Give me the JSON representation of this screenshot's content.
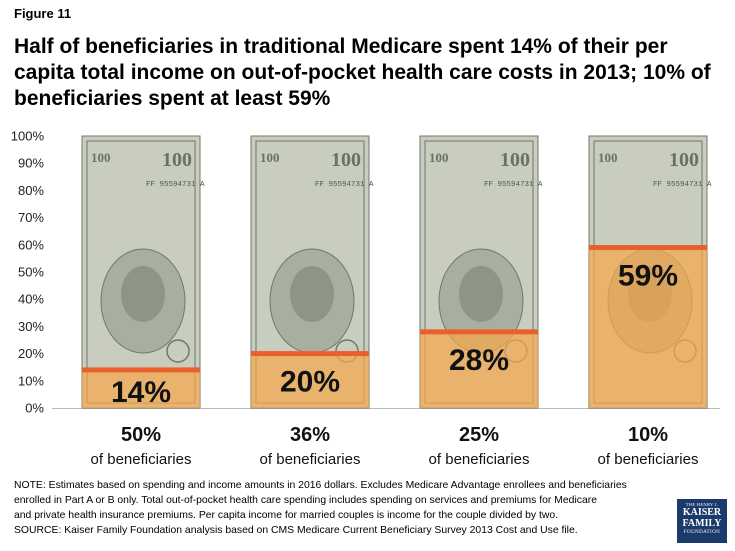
{
  "figure_label": "Figure 11",
  "title": "Half of beneficiaries in traditional Medicare spent 14% of their per capita total income on out-of-pocket health care costs in 2013; 10% of beneficiaries spent at least 59%",
  "chart_data": {
    "type": "bar",
    "ylim": [
      0,
      100
    ],
    "yticks": [
      "0%",
      "10%",
      "20%",
      "30%",
      "40%",
      "50%",
      "60%",
      "70%",
      "80%",
      "90%",
      "100%"
    ],
    "categories": [
      "50%",
      "36%",
      "25%",
      "10%"
    ],
    "category_sublabel": "of beneficiaries",
    "values": [
      14,
      20,
      28,
      59
    ],
    "value_labels": [
      "14%",
      "20%",
      "28%",
      "59%"
    ],
    "fill_color": "#f5a84c",
    "line_color": "#e8602c"
  },
  "bill": {
    "serial": "FF 95594731 A",
    "denomination": "100"
  },
  "note_lines": [
    "NOTE: Estimates based on spending and income amounts in 2016 dollars. Excludes Medicare Advantage enrollees and beneficiaries",
    "enrolled in Part A or B only. Total out-of-pocket health care spending includes spending on services and premiums for Medicare",
    "and private health insurance premiums. Per capita income for married couples is income for the couple divided by two.",
    "SOURCE: Kaiser Family Foundation  analysis based on CMS Medicare Current Beneficiary Survey 2013 Cost and Use file."
  ],
  "logo": {
    "line1": "THE HENRY J.",
    "line2": "KAISER",
    "line3": "FAMILY",
    "line4": "FOUNDATION"
  }
}
